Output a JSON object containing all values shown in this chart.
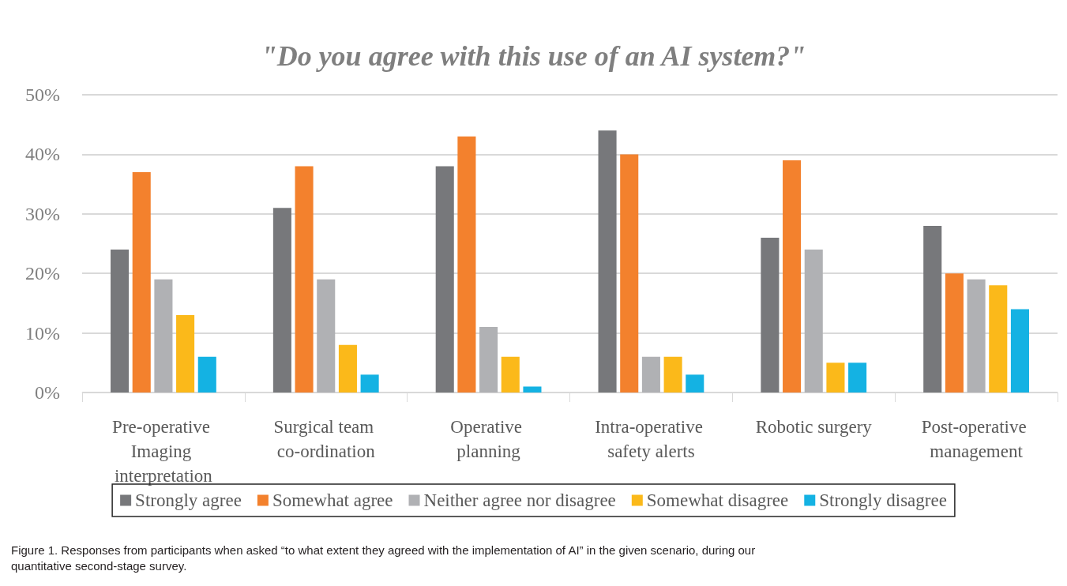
{
  "chart_data": {
    "type": "bar",
    "title": "\"Do you agree with this use of an AI system?\"",
    "categories": [
      "Pre-operative Imaging interpretation",
      "Surgical team co-ordination",
      "Operative planning",
      "Intra-operative safety alerts",
      "Robotic surgery",
      "Post-operative management"
    ],
    "series": [
      {
        "name": "Strongly agree",
        "color": "#77787b",
        "values": [
          24,
          31,
          38,
          44,
          26,
          28
        ]
      },
      {
        "name": "Somewhat agree",
        "color": "#f3812d",
        "values": [
          37,
          38,
          43,
          40,
          39,
          20
        ]
      },
      {
        "name": "Neither agree nor disagree",
        "color": "#b0b1b4",
        "values": [
          19,
          19,
          11,
          6,
          24,
          19
        ]
      },
      {
        "name": "Somewhat disagree",
        "color": "#fbb91a",
        "values": [
          13,
          8,
          6,
          6,
          5,
          18
        ]
      },
      {
        "name": "Strongly disagree",
        "color": "#14b2e3",
        "values": [
          6,
          3,
          1,
          3,
          5,
          14
        ]
      }
    ],
    "ylim": [
      0,
      50
    ],
    "yticks": [
      {
        "value": 0,
        "label": "0%"
      },
      {
        "value": 10,
        "label": "10%"
      },
      {
        "value": 20,
        "label": "20%"
      },
      {
        "value": 30,
        "label": "30%"
      },
      {
        "value": 40,
        "label": "40%"
      },
      {
        "value": 50,
        "label": "50%"
      }
    ],
    "grid": "y",
    "legend": "bottom",
    "annotations": [
      "Figure 1. Responses from participants when asked “to what extent they agreed with the implementation of AI” in the given scenario, during our quantitative second-stage survey."
    ]
  }
}
